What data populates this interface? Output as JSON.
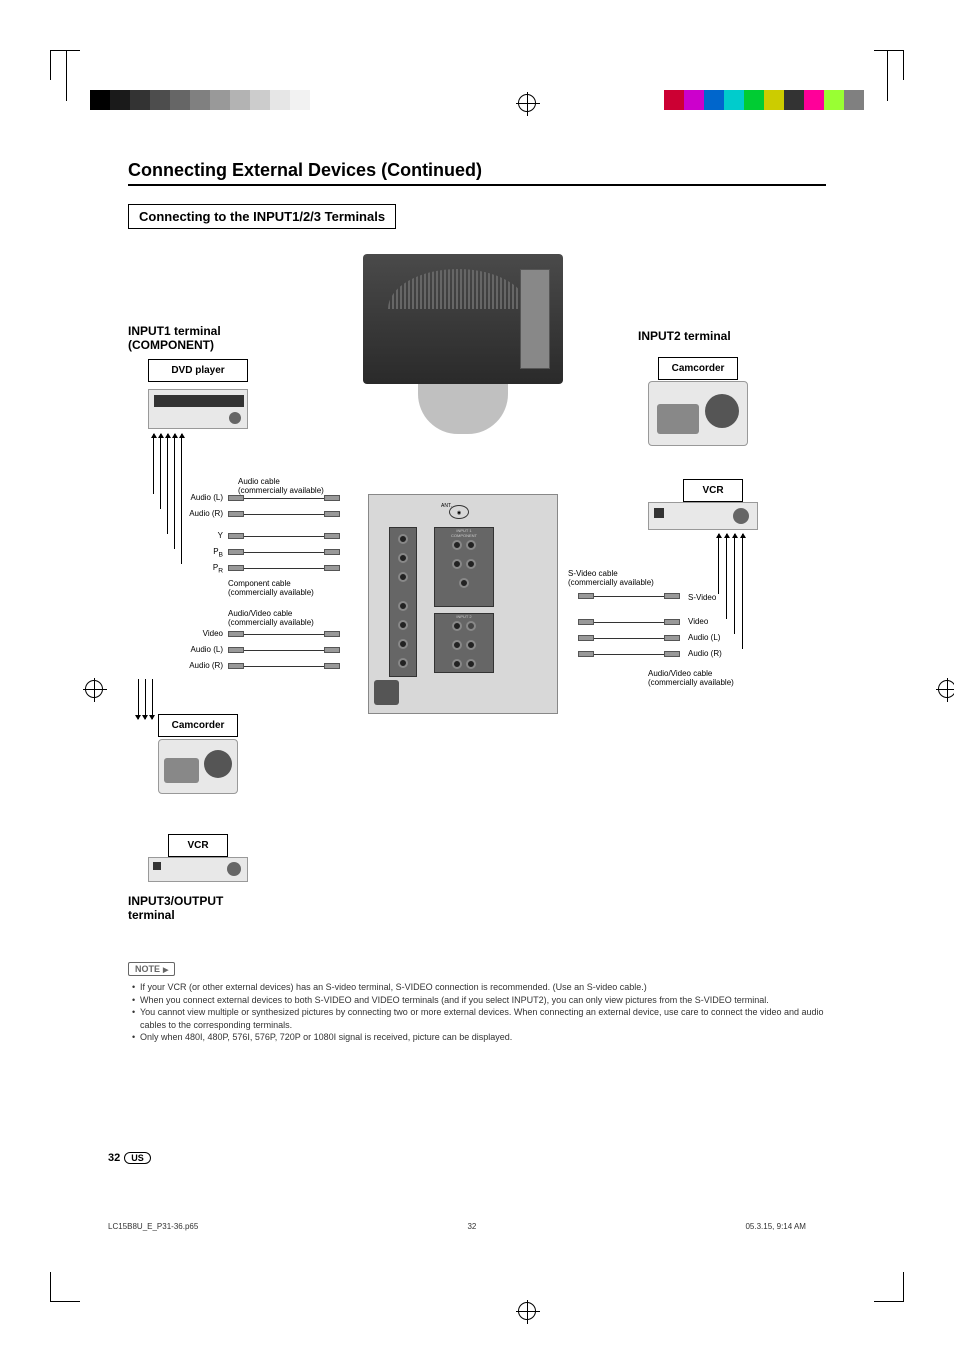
{
  "colorbar_bw": [
    "#000000",
    "#1a1a1a",
    "#333333",
    "#4d4d4d",
    "#666666",
    "#808080",
    "#999999",
    "#b3b3b3",
    "#cccccc",
    "#e6e6e6",
    "#f2f2f2",
    "#ffffff"
  ],
  "colorbar_color": [
    "#cc0033",
    "#cc00cc",
    "#0066cc",
    "#00cccc",
    "#00cc33",
    "#cccc00",
    "#333333",
    "#ff0099",
    "#99ff33",
    "#808080"
  ],
  "title": "Connecting External Devices (Continued)",
  "subtitle": "Connecting to the INPUT1/2/3 Terminals",
  "input1_title_l1": "INPUT1 terminal",
  "input1_title_l2": "(COMPONENT)",
  "input2_title": "INPUT2 terminal",
  "input3_title_l1": "INPUT3/OUTPUT",
  "input3_title_l2": "terminal",
  "devices": {
    "dvd": "DVD player",
    "camcorder": "Camcorder",
    "vcr": "VCR"
  },
  "cables": {
    "audio_cable": "Audio cable",
    "commercially": "(commercially available)",
    "component_cable": "Component cable",
    "av_cable": "Audio/Video cable",
    "svideo_cable": "S-Video cable"
  },
  "signals": {
    "audio_l": "Audio (L)",
    "audio_r": "Audio (R)",
    "y": "Y",
    "pb": "P",
    "pb_sub": "B",
    "pr": "P",
    "pr_sub": "R",
    "video": "Video",
    "svideo": "S-Video"
  },
  "note_label": "NOTE",
  "notes": [
    "If your VCR (or other external devices) has an S-video terminal, S-VIDEO connection is recommended. (Use an S-video cable.)",
    "When you connect external devices to both S-VIDEO and VIDEO terminals (and if you select INPUT2), you can only view pictures from the S-VIDEO terminal.",
    "You cannot view multiple or synthesized pictures by connecting two or more external devices. When connecting an external device, use care to connect the video and audio cables to the corresponding terminals.",
    "Only when 480I, 480P, 576I, 576P, 720P or 1080I signal is received, picture can be displayed."
  ],
  "page_number": "32",
  "region": "US",
  "footer_file": "LC15B8U_E_P31-36.p65",
  "footer_page": "32",
  "footer_date": "05.3.15, 9:14 AM"
}
